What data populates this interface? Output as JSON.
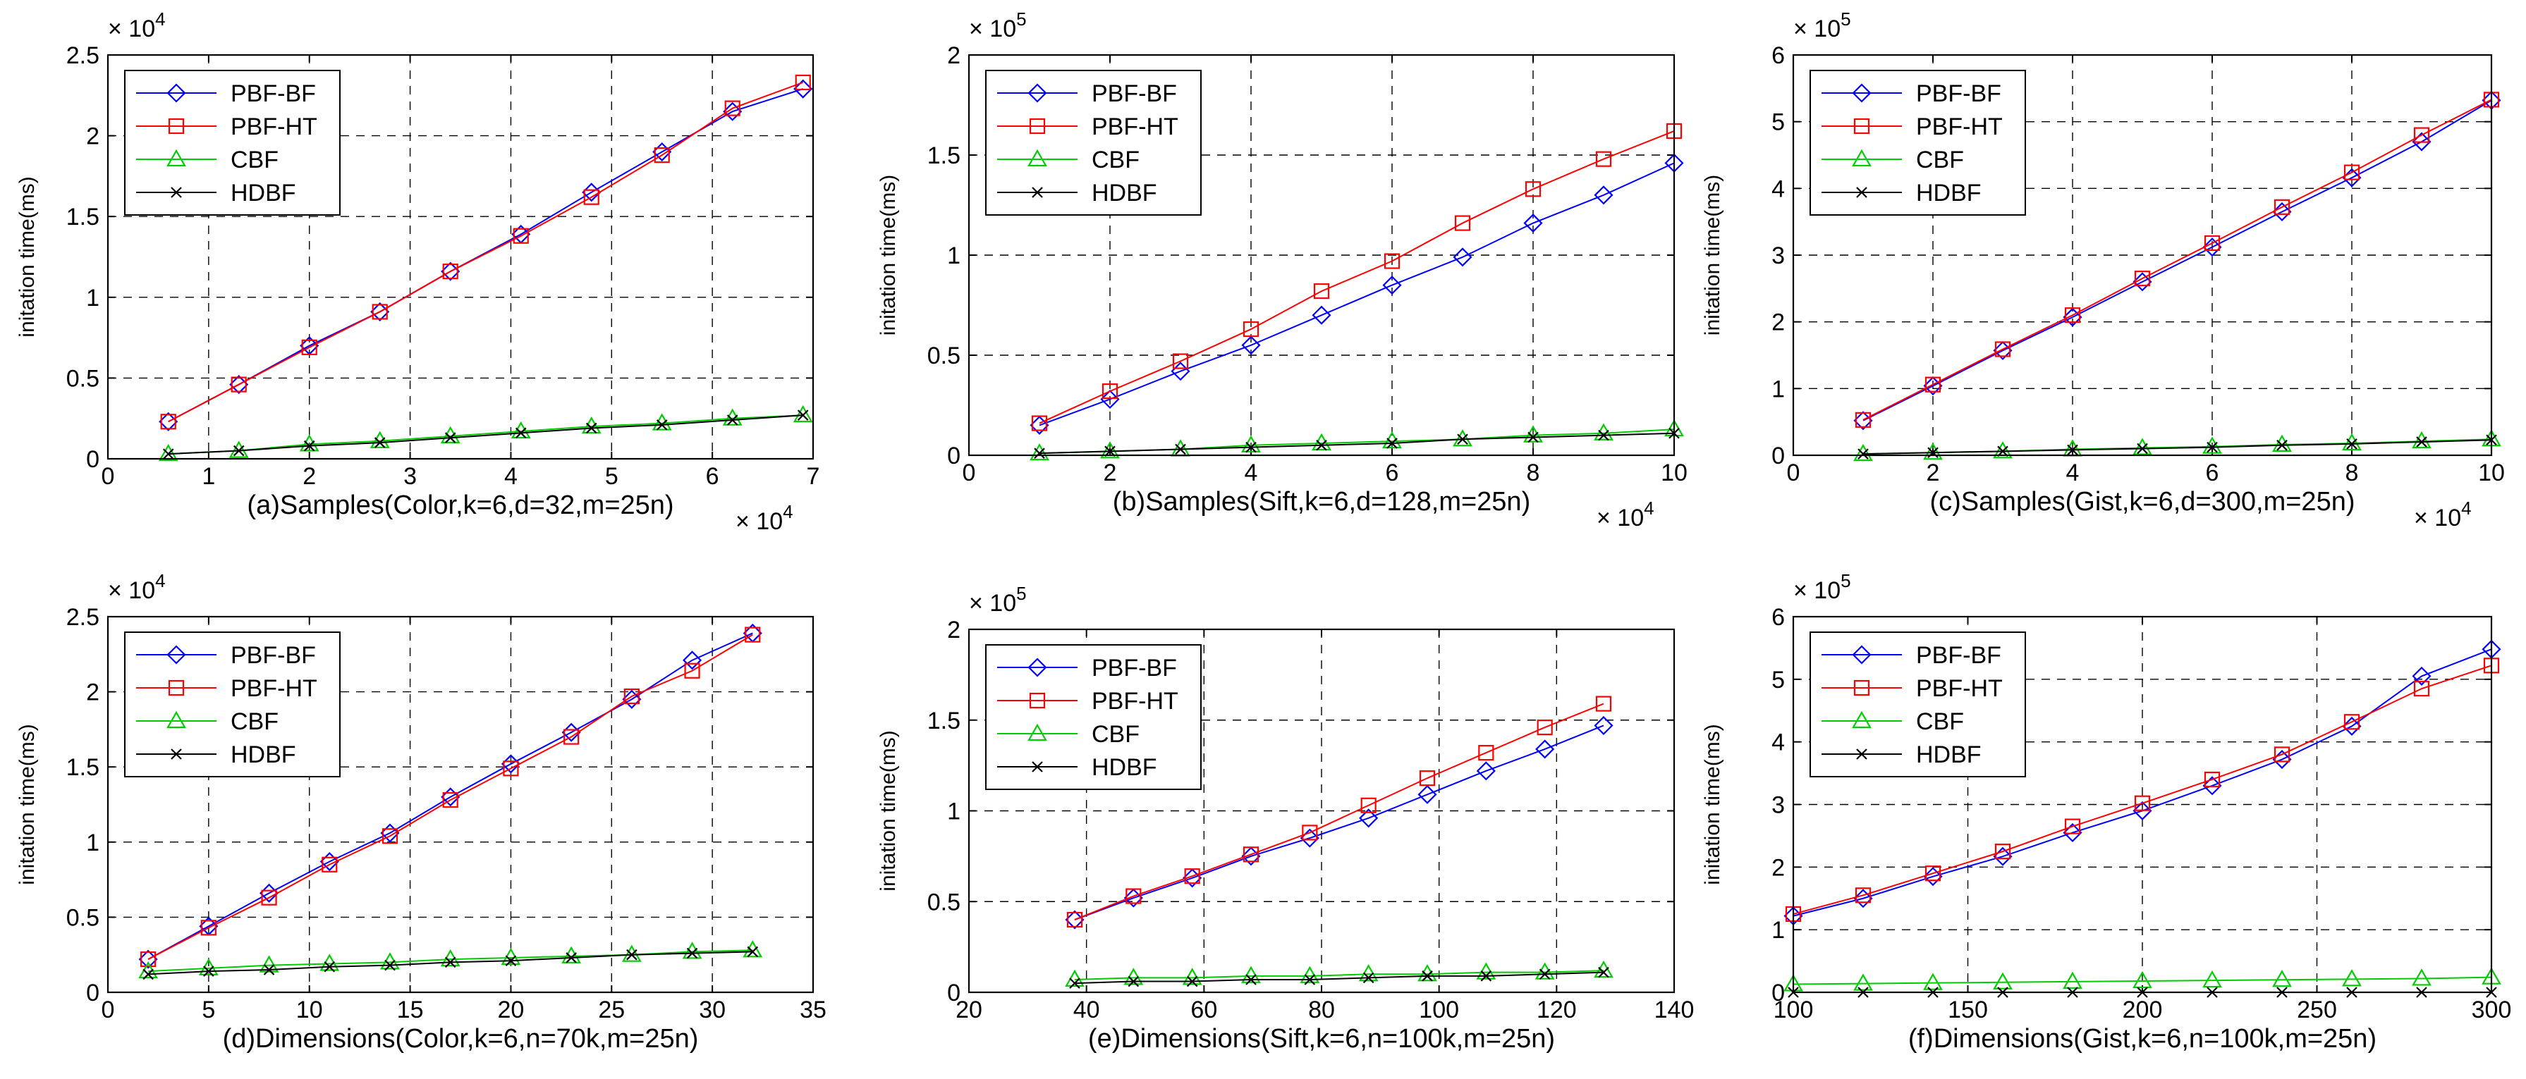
{
  "chart_data": [
    {
      "type": "line",
      "ylabel": "initation time(ms)",
      "xlabel": "(a)Samples(Color,k=6,d=32,m=25n)",
      "x_exponent": "× 10",
      "x_exponent_power": "4",
      "y_exponent": "× 10",
      "y_exponent_power": "4",
      "xlim": [
        0,
        7
      ],
      "ylim": [
        0,
        2.5
      ],
      "xticks": [
        0,
        1,
        2,
        3,
        4,
        5,
        6,
        7
      ],
      "xtick_labels": [
        "0",
        "1",
        "2",
        "3",
        "4",
        "5",
        "6",
        "7"
      ],
      "yticks": [
        0,
        0.5,
        1,
        1.5,
        2,
        2.5
      ],
      "ytick_labels": [
        "0",
        "0.5",
        "1",
        "1.5",
        "2",
        "2.5"
      ],
      "legend": "top-left",
      "grid": true,
      "series": [
        {
          "name": "PBF-BF",
          "color": "#0000ff",
          "marker": "diamond",
          "x": [
            0.6,
            1.3,
            2.0,
            2.7,
            3.4,
            4.1,
            4.8,
            5.5,
            6.2,
            6.9
          ],
          "y": [
            0.23,
            0.46,
            0.7,
            0.91,
            1.16,
            1.39,
            1.65,
            1.9,
            2.15,
            2.29
          ]
        },
        {
          "name": "PBF-HT",
          "color": "#ff0000",
          "marker": "square",
          "x": [
            0.6,
            1.3,
            2.0,
            2.7,
            3.4,
            4.1,
            4.8,
            5.5,
            6.2,
            6.9
          ],
          "y": [
            0.23,
            0.46,
            0.69,
            0.91,
            1.16,
            1.38,
            1.62,
            1.88,
            2.17,
            2.33
          ]
        },
        {
          "name": "CBF",
          "color": "#00cc00",
          "marker": "triangle",
          "x": [
            0.6,
            1.3,
            2.0,
            2.7,
            3.4,
            4.1,
            4.8,
            5.5,
            6.2,
            6.9
          ],
          "y": [
            0.03,
            0.05,
            0.09,
            0.11,
            0.14,
            0.17,
            0.2,
            0.22,
            0.25,
            0.27
          ]
        },
        {
          "name": "HDBF",
          "color": "#000000",
          "marker": "x",
          "x": [
            0.6,
            1.3,
            2.0,
            2.7,
            3.4,
            4.1,
            4.8,
            5.5,
            6.2,
            6.9
          ],
          "y": [
            0.03,
            0.05,
            0.08,
            0.1,
            0.13,
            0.16,
            0.19,
            0.21,
            0.24,
            0.27
          ]
        }
      ]
    },
    {
      "type": "line",
      "ylabel": "initation time(ms)",
      "xlabel": "(b)Samples(Sift,k=6,d=128,m=25n)",
      "x_exponent": "× 10",
      "x_exponent_power": "4",
      "y_exponent": "× 10",
      "y_exponent_power": "5",
      "xlim": [
        0,
        10
      ],
      "ylim": [
        0,
        2
      ],
      "xticks": [
        0,
        2,
        4,
        6,
        8,
        10
      ],
      "xtick_labels": [
        "0",
        "2",
        "4",
        "6",
        "8",
        "10"
      ],
      "yticks": [
        0,
        0.5,
        1,
        1.5,
        2
      ],
      "ytick_labels": [
        "0",
        "0.5",
        "1",
        "1.5",
        "2"
      ],
      "legend": "top-left",
      "grid": true,
      "series": [
        {
          "name": "PBF-BF",
          "color": "#0000ff",
          "marker": "diamond",
          "x": [
            1,
            2,
            3,
            4,
            5,
            6,
            7,
            8,
            9,
            10
          ],
          "y": [
            0.15,
            0.28,
            0.42,
            0.55,
            0.7,
            0.85,
            0.99,
            1.16,
            1.3,
            1.46
          ]
        },
        {
          "name": "PBF-HT",
          "color": "#ff0000",
          "marker": "square",
          "x": [
            1,
            2,
            3,
            4,
            5,
            6,
            7,
            8,
            9,
            10
          ],
          "y": [
            0.16,
            0.32,
            0.47,
            0.63,
            0.82,
            0.97,
            1.16,
            1.33,
            1.48,
            1.62
          ]
        },
        {
          "name": "CBF",
          "color": "#00cc00",
          "marker": "triangle",
          "x": [
            1,
            2,
            3,
            4,
            5,
            6,
            7,
            8,
            9,
            10
          ],
          "y": [
            0.01,
            0.02,
            0.03,
            0.05,
            0.06,
            0.07,
            0.08,
            0.1,
            0.11,
            0.13
          ]
        },
        {
          "name": "HDBF",
          "color": "#000000",
          "marker": "x",
          "x": [
            1,
            2,
            3,
            4,
            5,
            6,
            7,
            8,
            9,
            10
          ],
          "y": [
            0.01,
            0.02,
            0.03,
            0.04,
            0.05,
            0.06,
            0.08,
            0.09,
            0.1,
            0.11
          ]
        }
      ]
    },
    {
      "type": "line",
      "ylabel": "initation time(ms)",
      "xlabel": "(c)Samples(Gist,k=6,d=300,m=25n)",
      "x_exponent": "× 10",
      "x_exponent_power": "4",
      "y_exponent": "× 10",
      "y_exponent_power": "5",
      "xlim": [
        0,
        10
      ],
      "ylim": [
        0,
        6
      ],
      "xticks": [
        0,
        2,
        4,
        6,
        8,
        10
      ],
      "xtick_labels": [
        "0",
        "2",
        "4",
        "6",
        "8",
        "10"
      ],
      "yticks": [
        0,
        1,
        2,
        3,
        4,
        5,
        6
      ],
      "ytick_labels": [
        "0",
        "1",
        "2",
        "3",
        "4",
        "5",
        "6"
      ],
      "legend": "top-left",
      "grid": true,
      "series": [
        {
          "name": "PBF-BF",
          "color": "#0000ff",
          "marker": "diamond",
          "x": [
            1,
            2,
            3,
            4,
            5,
            6,
            7,
            8,
            9,
            10
          ],
          "y": [
            0.52,
            1.04,
            1.57,
            2.07,
            2.6,
            3.12,
            3.65,
            4.16,
            4.7,
            5.32
          ]
        },
        {
          "name": "PBF-HT",
          "color": "#ff0000",
          "marker": "square",
          "x": [
            1,
            2,
            3,
            4,
            5,
            6,
            7,
            8,
            9,
            10
          ],
          "y": [
            0.53,
            1.06,
            1.59,
            2.1,
            2.65,
            3.18,
            3.72,
            4.24,
            4.8,
            5.33
          ]
        },
        {
          "name": "CBF",
          "color": "#00cc00",
          "marker": "triangle",
          "x": [
            1,
            2,
            3,
            4,
            5,
            6,
            7,
            8,
            9,
            10
          ],
          "y": [
            0.02,
            0.04,
            0.06,
            0.09,
            0.11,
            0.13,
            0.16,
            0.18,
            0.21,
            0.24
          ]
        },
        {
          "name": "HDBF",
          "color": "#000000",
          "marker": "x",
          "x": [
            1,
            2,
            3,
            4,
            5,
            6,
            7,
            8,
            9,
            10
          ],
          "y": [
            0.02,
            0.04,
            0.06,
            0.08,
            0.1,
            0.12,
            0.15,
            0.17,
            0.2,
            0.23
          ]
        }
      ]
    },
    {
      "type": "line",
      "ylabel": "initation time(ms)",
      "xlabel": "(d)Dimensions(Color,k=6,n=70k,m=25n)",
      "x_exponent": "",
      "x_exponent_power": "",
      "y_exponent": "× 10",
      "y_exponent_power": "4",
      "xlim": [
        0,
        35
      ],
      "ylim": [
        0,
        2.5
      ],
      "xticks": [
        0,
        5,
        10,
        15,
        20,
        25,
        30,
        35
      ],
      "xtick_labels": [
        "0",
        "5",
        "10",
        "15",
        "20",
        "25",
        "30",
        "35"
      ],
      "yticks": [
        0,
        0.5,
        1,
        1.5,
        2,
        2.5
      ],
      "ytick_labels": [
        "0",
        "0.5",
        "1",
        "1.5",
        "2",
        "2.5"
      ],
      "legend": "top-left",
      "grid": true,
      "series": [
        {
          "name": "PBF-BF",
          "color": "#0000ff",
          "marker": "diamond",
          "x": [
            2,
            5,
            8,
            11,
            14,
            17,
            20,
            23,
            26,
            29,
            32
          ],
          "y": [
            0.22,
            0.44,
            0.66,
            0.87,
            1.06,
            1.3,
            1.52,
            1.73,
            1.95,
            2.21,
            2.39
          ]
        },
        {
          "name": "PBF-HT",
          "color": "#ff0000",
          "marker": "square",
          "x": [
            2,
            5,
            8,
            11,
            14,
            17,
            20,
            23,
            26,
            29,
            32
          ],
          "y": [
            0.22,
            0.43,
            0.63,
            0.85,
            1.04,
            1.28,
            1.49,
            1.7,
            1.97,
            2.14,
            2.38
          ]
        },
        {
          "name": "CBF",
          "color": "#00cc00",
          "marker": "triangle",
          "x": [
            2,
            5,
            8,
            11,
            14,
            17,
            20,
            23,
            26,
            29,
            32
          ],
          "y": [
            0.14,
            0.16,
            0.18,
            0.19,
            0.2,
            0.22,
            0.23,
            0.24,
            0.25,
            0.27,
            0.28
          ]
        },
        {
          "name": "HDBF",
          "color": "#000000",
          "marker": "x",
          "x": [
            2,
            5,
            8,
            11,
            14,
            17,
            20,
            23,
            26,
            29,
            32
          ],
          "y": [
            0.12,
            0.14,
            0.15,
            0.17,
            0.18,
            0.2,
            0.21,
            0.23,
            0.25,
            0.26,
            0.27
          ]
        }
      ]
    },
    {
      "type": "line",
      "ylabel": "initation time(ms)",
      "xlabel": "(e)Dimensions(Sift,k=6,n=100k,m=25n)",
      "x_exponent": "",
      "x_exponent_power": "",
      "y_exponent": "× 10",
      "y_exponent_power": "5",
      "xlim": [
        20,
        140
      ],
      "ylim": [
        0,
        2
      ],
      "xticks": [
        20,
        40,
        60,
        80,
        100,
        120,
        140
      ],
      "xtick_labels": [
        "20",
        "40",
        "60",
        "80",
        "100",
        "120",
        "140"
      ],
      "yticks": [
        0,
        0.5,
        1,
        1.5,
        2
      ],
      "ytick_labels": [
        "0",
        "0.5",
        "1",
        "1.5",
        "2"
      ],
      "legend": "top-left",
      "grid": true,
      "series": [
        {
          "name": "PBF-BF",
          "color": "#0000ff",
          "marker": "diamond",
          "x": [
            38,
            48,
            58,
            68,
            78,
            88,
            98,
            108,
            118,
            128
          ],
          "y": [
            0.4,
            0.52,
            0.63,
            0.75,
            0.85,
            0.96,
            1.09,
            1.22,
            1.34,
            1.47
          ]
        },
        {
          "name": "PBF-HT",
          "color": "#ff0000",
          "marker": "square",
          "x": [
            38,
            48,
            58,
            68,
            78,
            88,
            98,
            108,
            118,
            128
          ],
          "y": [
            0.4,
            0.53,
            0.64,
            0.76,
            0.88,
            1.03,
            1.18,
            1.32,
            1.46,
            1.59
          ]
        },
        {
          "name": "CBF",
          "color": "#00cc00",
          "marker": "triangle",
          "x": [
            38,
            48,
            58,
            68,
            78,
            88,
            98,
            108,
            118,
            128
          ],
          "y": [
            0.07,
            0.08,
            0.08,
            0.09,
            0.09,
            0.1,
            0.1,
            0.11,
            0.11,
            0.12
          ]
        },
        {
          "name": "HDBF",
          "color": "#000000",
          "marker": "x",
          "x": [
            38,
            48,
            58,
            68,
            78,
            88,
            98,
            108,
            118,
            128
          ],
          "y": [
            0.05,
            0.06,
            0.06,
            0.07,
            0.07,
            0.08,
            0.09,
            0.09,
            0.1,
            0.11
          ]
        }
      ]
    },
    {
      "type": "line",
      "ylabel": "initation time(ms)",
      "xlabel": "(f)Dimensions(Gist,k=6,n=100k,m=25n)",
      "x_exponent": "",
      "x_exponent_power": "",
      "y_exponent": "× 10",
      "y_exponent_power": "5",
      "xlim": [
        100,
        300
      ],
      "ylim": [
        0,
        6
      ],
      "xticks": [
        100,
        150,
        200,
        250,
        300
      ],
      "xtick_labels": [
        "100",
        "150",
        "200",
        "250",
        "300"
      ],
      "yticks": [
        0,
        1,
        2,
        3,
        4,
        5,
        6
      ],
      "ytick_labels": [
        "0",
        "1",
        "2",
        "3",
        "4",
        "5",
        "6"
      ],
      "legend": "top-left",
      "grid": true,
      "series": [
        {
          "name": "PBF-BF",
          "color": "#0000ff",
          "marker": "diamond",
          "x": [
            100,
            120,
            140,
            160,
            180,
            200,
            220,
            240,
            260,
            280,
            300
          ],
          "y": [
            1.22,
            1.5,
            1.85,
            2.17,
            2.55,
            2.9,
            3.3,
            3.72,
            4.25,
            5.05,
            5.48
          ]
        },
        {
          "name": "PBF-HT",
          "color": "#ff0000",
          "marker": "square",
          "x": [
            100,
            120,
            140,
            160,
            180,
            200,
            220,
            240,
            260,
            280,
            300
          ],
          "y": [
            1.25,
            1.55,
            1.9,
            2.25,
            2.65,
            3.02,
            3.4,
            3.8,
            4.32,
            4.85,
            5.22
          ]
        },
        {
          "name": "CBF",
          "color": "#00cc00",
          "marker": "triangle",
          "x": [
            100,
            120,
            140,
            160,
            180,
            200,
            220,
            240,
            260,
            280,
            300
          ],
          "y": [
            0.13,
            0.14,
            0.15,
            0.16,
            0.17,
            0.18,
            0.19,
            0.2,
            0.21,
            0.22,
            0.24
          ]
        },
        {
          "name": "HDBF",
          "color": "#000000",
          "marker": "x",
          "x": [
            100,
            120,
            140,
            160,
            180,
            200,
            220,
            240,
            260,
            280,
            300
          ],
          "y": [
            0.0,
            0.0,
            0.0,
            0.0,
            0.0,
            0.0,
            0.0,
            0.0,
            0.0,
            0.0,
            0.0
          ]
        }
      ]
    }
  ]
}
